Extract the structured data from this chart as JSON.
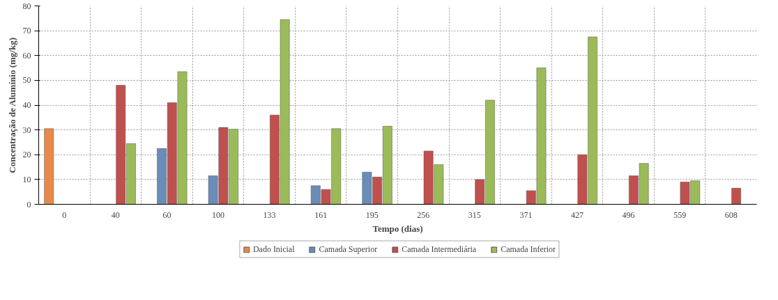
{
  "chart_data": {
    "type": "bar",
    "xlabel": "Tempo (dias)",
    "ylabel": "Concentração de Alumínio (mg/kg)",
    "categories": [
      "0",
      "40",
      "60",
      "100",
      "133",
      "161",
      "195",
      "256",
      "315",
      "371",
      "427",
      "496",
      "559",
      "608"
    ],
    "series": [
      {
        "name": "Dado Inicial",
        "color": "#e8894a",
        "values": [
          30.5,
          null,
          null,
          null,
          null,
          null,
          null,
          null,
          null,
          null,
          null,
          null,
          null,
          null
        ]
      },
      {
        "name": "Camada Superior",
        "color": "#6a8cb8",
        "values": [
          null,
          null,
          22.5,
          11.5,
          null,
          7.5,
          13,
          null,
          null,
          null,
          null,
          null,
          null,
          null
        ]
      },
      {
        "name": "Camada Intermediária",
        "color": "#c0504d",
        "values": [
          null,
          48,
          41,
          31,
          36,
          6,
          11,
          21.5,
          10,
          5.5,
          20,
          11.5,
          9,
          6.5
        ]
      },
      {
        "name": "Camada Inferior",
        "color": "#9bbb59",
        "values": [
          null,
          24.5,
          53.5,
          30.3,
          74.5,
          30.5,
          31.5,
          16,
          42,
          55,
          67.5,
          16.5,
          9.5,
          null
        ]
      }
    ],
    "ylim": [
      0,
      80
    ],
    "yticks": [
      0,
      10,
      20,
      30,
      40,
      50,
      60,
      70,
      80
    ],
    "grid": true,
    "legend": "bottom"
  }
}
